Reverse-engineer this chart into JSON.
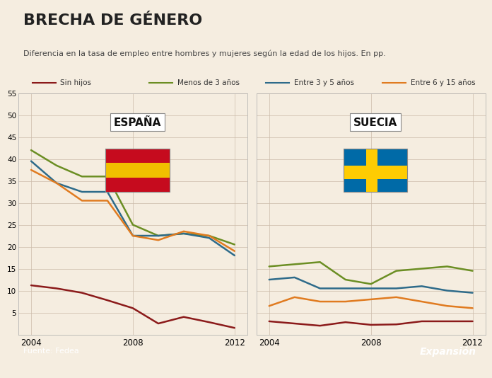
{
  "title": "BRECHA DE GÉNERO",
  "subtitle": "Diferencia en la tasa de empleo entre hombres y mujeres según la edad de los hijos. En pp.",
  "background_color": "#f5ede0",
  "plot_bg_color": "#f5ede0",
  "footer_bg": "#b8a898",
  "source": "Fuente: Fedea",
  "brand": "Expansión",
  "ylim": [
    0,
    55
  ],
  "yticks": [
    5,
    10,
    15,
    20,
    25,
    30,
    35,
    40,
    45,
    50,
    55
  ],
  "years": [
    2004,
    2005,
    2006,
    2007,
    2008,
    2009,
    2010,
    2011,
    2012
  ],
  "series": {
    "sin_hijos": {
      "label": "Sin hijos",
      "color": "#8b1a1a",
      "es": [
        11.2,
        10.5,
        9.5,
        7.8,
        6.0,
        2.5,
        4.0,
        2.8,
        1.5
      ],
      "se": [
        3.0,
        2.5,
        2.0,
        2.8,
        2.2,
        2.3,
        3.0,
        3.0,
        3.0
      ]
    },
    "menos3": {
      "label": "Menos de 3 años",
      "color": "#6b8e23",
      "es": [
        42.0,
        38.5,
        36.0,
        36.0,
        25.0,
        22.5,
        23.0,
        22.5,
        20.5
      ],
      "se": [
        15.5,
        16.0,
        16.5,
        12.5,
        11.5,
        14.5,
        15.0,
        15.5,
        14.5
      ]
    },
    "entre3y5": {
      "label": "Entre 3 y 5 años",
      "color": "#2e6b8a",
      "es": [
        39.5,
        34.5,
        32.5,
        32.5,
        22.5,
        22.5,
        23.0,
        22.0,
        18.0
      ],
      "se": [
        12.5,
        13.0,
        10.5,
        10.5,
        10.5,
        10.5,
        11.0,
        10.0,
        9.5
      ]
    },
    "entre6y15": {
      "label": "Entre 6 y 15 años",
      "color": "#e07b20",
      "es": [
        37.5,
        34.5,
        30.5,
        30.5,
        22.5,
        21.5,
        23.5,
        22.5,
        19.0
      ],
      "se": [
        6.5,
        8.5,
        7.5,
        7.5,
        8.0,
        8.5,
        7.5,
        6.5,
        6.0
      ]
    }
  }
}
